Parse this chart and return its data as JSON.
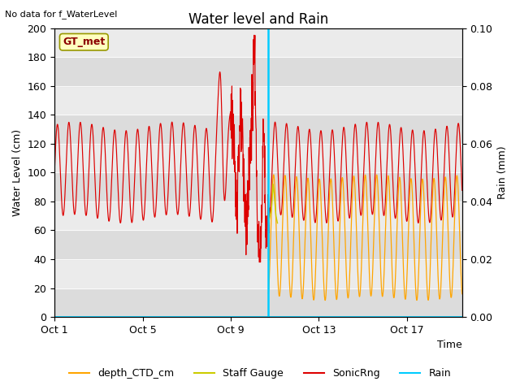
{
  "title": "Water level and Rain",
  "top_left_text": "No data for f_WaterLevel",
  "xlabel": "Time",
  "ylabel_left": "Water Level (cm)",
  "ylabel_right": "Rain (mm)",
  "ylim_left": [
    0,
    200
  ],
  "ylim_right": [
    0,
    0.1
  ],
  "yticks_left": [
    0,
    20,
    40,
    60,
    80,
    100,
    120,
    140,
    160,
    180,
    200
  ],
  "yticks_right": [
    0.0,
    0.02,
    0.04,
    0.06,
    0.08,
    0.1
  ],
  "xtick_labels": [
    "Oct 1",
    "Oct 5",
    "Oct 9",
    "Oct 13",
    "Oct 17"
  ],
  "xtick_positions": [
    0,
    4,
    8,
    12,
    16
  ],
  "xlim": [
    0,
    18.5
  ],
  "vertical_line_x": 9.7,
  "box_label": "GT_met",
  "legend_labels": [
    "depth_CTD_cm",
    "Staff Gauge",
    "SonicRng",
    "Rain"
  ],
  "sonic_color": "#DD0000",
  "ctd_color": "#FFA500",
  "staff_color": "#CCCC00",
  "rain_color": "#00CCFF",
  "vline_color": "#00CCFF",
  "bg_band_colors": [
    "#DCDCDC",
    "#EBEBEB"
  ],
  "plot_bg": "#DCDCDC",
  "title_fontsize": 12,
  "label_fontsize": 9,
  "tick_fontsize": 9
}
